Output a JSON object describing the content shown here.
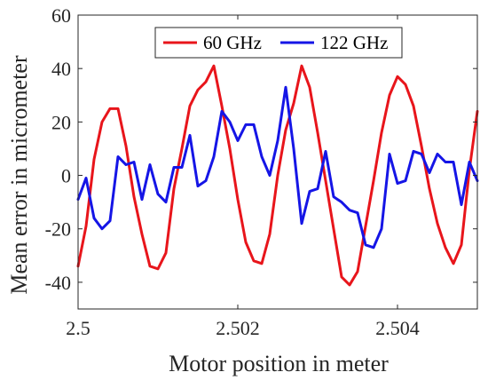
{
  "chart_data": {
    "type": "line",
    "xlabel": "Motor position in meter",
    "ylabel": "Mean error in micrometer",
    "xlim": [
      2.5,
      2.505
    ],
    "ylim": [
      -50,
      60
    ],
    "xticks": [
      2.5,
      2.502,
      2.504
    ],
    "xtick_labels": [
      "2.5",
      "2.502",
      "2.504"
    ],
    "yticks": [
      -40,
      -20,
      0,
      20,
      40,
      60
    ],
    "ytick_labels": [
      "-40",
      "-20",
      "0",
      "20",
      "40",
      "60"
    ],
    "grid": false,
    "legend": "top-center",
    "series": [
      {
        "name": "60 GHz",
        "color": "#e8151b",
        "x": [
          2.5,
          2.5001,
          2.5002,
          2.5003,
          2.5004,
          2.5005,
          2.5006,
          2.5007,
          2.5008,
          2.5009,
          2.501,
          2.5011,
          2.5012,
          2.5013,
          2.5014,
          2.5015,
          2.5016,
          2.5017,
          2.5018,
          2.5019,
          2.502,
          2.5021,
          2.5022,
          2.5023,
          2.5024,
          2.5025,
          2.5026,
          2.5027,
          2.5028,
          2.5029,
          2.503,
          2.5031,
          2.5032,
          2.5033,
          2.5034,
          2.5035,
          2.5036,
          2.5037,
          2.5038,
          2.5039,
          2.504,
          2.5041,
          2.5042,
          2.5043,
          2.5044,
          2.5045,
          2.5046,
          2.5047,
          2.5048,
          2.5049,
          2.505
        ],
        "y": [
          -34,
          -19,
          6,
          20,
          25,
          25,
          11,
          -8,
          -22,
          -34,
          -35,
          -29,
          -5,
          10,
          26,
          32,
          35,
          41,
          26,
          10,
          -9,
          -25,
          -32,
          -33,
          -22,
          0,
          17,
          27,
          41,
          33,
          16,
          -2,
          -20,
          -38,
          -41,
          -36,
          -19,
          -2,
          16,
          30,
          37,
          34,
          26,
          11,
          -5,
          -18,
          -27,
          -33,
          -26,
          2,
          24
        ]
      },
      {
        "name": "122 GHz",
        "color": "#1515e6",
        "x": [
          2.5,
          2.5001,
          2.5002,
          2.5003,
          2.5004,
          2.5005,
          2.5006,
          2.5007,
          2.5008,
          2.5009,
          2.501,
          2.5011,
          2.5012,
          2.5013,
          2.5014,
          2.5015,
          2.5016,
          2.5017,
          2.5018,
          2.5019,
          2.502,
          2.5021,
          2.5022,
          2.5023,
          2.5024,
          2.5025,
          2.5026,
          2.5027,
          2.5028,
          2.5029,
          2.503,
          2.5031,
          2.5032,
          2.5033,
          2.5034,
          2.5035,
          2.5036,
          2.5037,
          2.5038,
          2.5039,
          2.504,
          2.5041,
          2.5042,
          2.5043,
          2.5044,
          2.5045,
          2.5046,
          2.5047,
          2.5048,
          2.5049,
          2.505
        ],
        "y": [
          -9,
          -1,
          -16,
          -20,
          -17,
          7,
          4,
          5,
          -9,
          4,
          -7,
          -10,
          3,
          3,
          15,
          -4,
          -2,
          7,
          24,
          20,
          13,
          19,
          19,
          7,
          0,
          13,
          33,
          10,
          -18,
          -6,
          -5,
          9,
          -8,
          -10,
          -13,
          -14,
          -26,
          -27,
          -20,
          8,
          -3,
          -2,
          9,
          8,
          1,
          8,
          5,
          5,
          -11,
          5,
          -2
        ]
      }
    ]
  }
}
